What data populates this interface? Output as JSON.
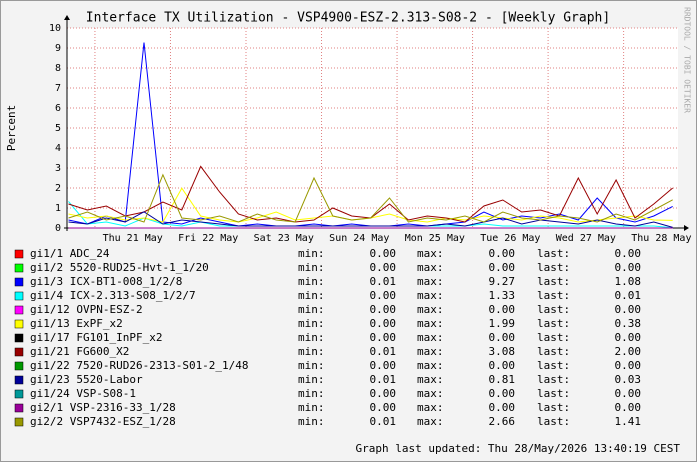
{
  "chart_data": {
    "type": "line",
    "title": "Interface TX Utilization - VSP4900-ESZ-2.313-S08-2 - [Weekly Graph]",
    "y_label": "Percent",
    "watermark": "RRDTOOL / TOBI OETIKER",
    "footer": "Graph last updated: Thu 28/May/2026 13:40:19 CEST",
    "stat_labels": {
      "min": "min:",
      "max": "max:",
      "last": "last:"
    },
    "xlim": [
      -0.37,
      7.72
    ],
    "xticks": [
      {
        "value": 0.5,
        "label": "Thu 21 May"
      },
      {
        "value": 1.5,
        "label": "Fri 22 May"
      },
      {
        "value": 2.5,
        "label": "Sat 23 May"
      },
      {
        "value": 3.5,
        "label": "Sun 24 May"
      },
      {
        "value": 4.5,
        "label": "Mon 25 May"
      },
      {
        "value": 5.5,
        "label": "Tue 26 May"
      },
      {
        "value": 6.5,
        "label": "Wed 27 May"
      },
      {
        "value": 7.5,
        "label": "Thu 28 May"
      }
    ],
    "ylim": [
      0,
      10
    ],
    "yticks": [
      0,
      1,
      2,
      3,
      4,
      5,
      6,
      7,
      8,
      9,
      10
    ],
    "grid": true,
    "x": [
      -0.35,
      -0.1,
      0.15,
      0.4,
      0.65,
      0.9,
      1.15,
      1.4,
      1.65,
      1.9,
      2.15,
      2.4,
      2.65,
      2.9,
      3.15,
      3.4,
      3.65,
      3.9,
      4.15,
      4.4,
      4.65,
      4.9,
      5.15,
      5.4,
      5.65,
      5.9,
      6.15,
      6.4,
      6.65,
      6.9,
      7.15,
      7.4,
      7.65
    ],
    "series": [
      {
        "name": "gi1/1 ADC_24",
        "color": "#ff0000",
        "min": "0.00",
        "max": "0.00",
        "last": "0.00",
        "values": [
          0,
          0,
          0,
          0,
          0,
          0,
          0,
          0,
          0,
          0,
          0,
          0,
          0,
          0,
          0,
          0,
          0,
          0,
          0,
          0,
          0,
          0,
          0,
          0,
          0,
          0,
          0,
          0,
          0,
          0,
          0,
          0,
          0
        ]
      },
      {
        "name": "gi1/2 5520-RUD25-Hvt-1_1/20",
        "color": "#00ff00",
        "min": "0.00",
        "max": "0.00",
        "last": "0.00",
        "values": [
          0,
          0,
          0,
          0,
          0,
          0,
          0,
          0,
          0,
          0,
          0,
          0,
          0,
          0,
          0,
          0,
          0,
          0,
          0,
          0,
          0,
          0,
          0,
          0,
          0,
          0,
          0,
          0,
          0,
          0,
          0,
          0,
          0
        ]
      },
      {
        "name": "gi1/3 ICX-BT1-008_1/2/8",
        "color": "#0000ff",
        "min": "0.01",
        "max": "9.27",
        "last": "1.08",
        "values": [
          0.4,
          0.2,
          0.6,
          0.3,
          9.27,
          0.3,
          0.2,
          0.5,
          0.3,
          0.1,
          0.2,
          0.1,
          0.1,
          0.2,
          0.1,
          0.2,
          0.1,
          0.1,
          0.2,
          0.1,
          0.2,
          0.3,
          0.8,
          0.4,
          0.6,
          0.5,
          0.7,
          0.4,
          1.5,
          0.5,
          0.3,
          0.6,
          1.08
        ]
      },
      {
        "name": "gi1/4 ICX-2.313-S08_1/2/7",
        "color": "#00ffff",
        "min": "0.00",
        "max": "1.33",
        "last": "0.01",
        "values": [
          1.33,
          0.2,
          0.3,
          0.1,
          0.5,
          0.2,
          0.1,
          0.3,
          0.1,
          0.1,
          0.1,
          0.1,
          0.1,
          0.1,
          0.1,
          0.1,
          0.1,
          0.1,
          0.1,
          0.1,
          0.1,
          0.1,
          0.2,
          0.1,
          0.1,
          0.1,
          0.1,
          0.1,
          0.1,
          0.1,
          0.1,
          0.1,
          0.01
        ]
      },
      {
        "name": "gi1/12 OVPN-ESZ-2",
        "color": "#ff00ff",
        "min": "0.00",
        "max": "0.00",
        "last": "0.00",
        "values": [
          0,
          0,
          0,
          0,
          0,
          0,
          0,
          0,
          0,
          0,
          0,
          0,
          0,
          0,
          0,
          0,
          0,
          0,
          0,
          0,
          0,
          0,
          0,
          0,
          0,
          0,
          0,
          0,
          0,
          0,
          0,
          0,
          0
        ]
      },
      {
        "name": "gi1/13 ExPF_x2",
        "color": "#ffff00",
        "min": "0.00",
        "max": "1.99",
        "last": "0.38",
        "values": [
          0.7,
          0.5,
          0.6,
          0.4,
          0.5,
          0.3,
          1.99,
          0.6,
          0.4,
          0.3,
          0.5,
          0.8,
          0.4,
          0.5,
          0.6,
          0.4,
          0.5,
          0.7,
          0.4,
          0.3,
          0.5,
          0.4,
          0.6,
          0.5,
          0.4,
          0.6,
          0.5,
          0.3,
          0.4,
          0.5,
          0.6,
          0.4,
          0.38
        ]
      },
      {
        "name": "gi1/17 FG101_InPF_x2",
        "color": "#000000",
        "min": "0.00",
        "max": "0.00",
        "last": "0.00",
        "values": [
          0,
          0,
          0,
          0,
          0,
          0,
          0,
          0,
          0,
          0,
          0,
          0,
          0,
          0,
          0,
          0,
          0,
          0,
          0,
          0,
          0,
          0,
          0,
          0,
          0,
          0,
          0,
          0,
          0,
          0,
          0,
          0,
          0
        ]
      },
      {
        "name": "gi1/21 FG600_X2",
        "color": "#990000",
        "min": "0.01",
        "max": "3.08",
        "last": "2.00",
        "values": [
          1.2,
          0.9,
          1.1,
          0.6,
          0.8,
          1.3,
          0.9,
          3.08,
          1.8,
          0.7,
          0.4,
          0.5,
          0.3,
          0.4,
          1.0,
          0.6,
          0.5,
          1.2,
          0.4,
          0.6,
          0.5,
          0.3,
          1.1,
          1.4,
          0.8,
          0.9,
          0.6,
          2.5,
          0.7,
          2.4,
          0.5,
          1.2,
          2.0
        ]
      },
      {
        "name": "gi1/22 7520-RUD26-2313-S01-2_1/48",
        "color": "#009900",
        "min": "0.00",
        "max": "0.00",
        "last": "0.00",
        "values": [
          0,
          0,
          0,
          0,
          0,
          0,
          0,
          0,
          0,
          0,
          0,
          0,
          0,
          0,
          0,
          0,
          0,
          0,
          0,
          0,
          0,
          0,
          0,
          0,
          0,
          0,
          0,
          0,
          0,
          0,
          0,
          0,
          0
        ]
      },
      {
        "name": "gi1/23 5520-Labor",
        "color": "#000099",
        "min": "0.01",
        "max": "0.81",
        "last": "0.03",
        "values": [
          0.3,
          0.2,
          0.5,
          0.3,
          0.81,
          0.2,
          0.4,
          0.3,
          0.2,
          0.1,
          0.1,
          0.1,
          0.1,
          0.1,
          0.1,
          0.1,
          0.1,
          0.1,
          0.1,
          0.1,
          0.2,
          0.1,
          0.3,
          0.5,
          0.2,
          0.4,
          0.3,
          0.2,
          0.4,
          0.2,
          0.1,
          0.3,
          0.03
        ]
      },
      {
        "name": "gi1/24 VSP-S08-1",
        "color": "#009999",
        "min": "0.00",
        "max": "0.00",
        "last": "0.00",
        "values": [
          0,
          0,
          0,
          0,
          0,
          0,
          0,
          0,
          0,
          0,
          0,
          0,
          0,
          0,
          0,
          0,
          0,
          0,
          0,
          0,
          0,
          0,
          0,
          0,
          0,
          0,
          0,
          0,
          0,
          0,
          0,
          0,
          0
        ]
      },
      {
        "name": "gi2/1 VSP-2316-33_1/28",
        "color": "#990099",
        "min": "0.00",
        "max": "0.00",
        "last": "0.00",
        "values": [
          0,
          0,
          0,
          0,
          0,
          0,
          0,
          0,
          0,
          0,
          0,
          0,
          0,
          0,
          0,
          0,
          0,
          0,
          0,
          0,
          0,
          0,
          0,
          0,
          0,
          0,
          0,
          0,
          0,
          0,
          0,
          0,
          0
        ]
      },
      {
        "name": "gi2/2 VSP7432-ESZ_1/28",
        "color": "#999900",
        "min": "0.01",
        "max": "2.66",
        "last": "1.41",
        "values": [
          0.5,
          0.8,
          0.4,
          0.6,
          0.3,
          2.66,
          0.5,
          0.4,
          0.6,
          0.3,
          0.7,
          0.4,
          0.3,
          2.5,
          0.6,
          0.4,
          0.5,
          1.5,
          0.3,
          0.5,
          0.4,
          0.6,
          0.3,
          0.8,
          0.5,
          0.4,
          0.6,
          0.5,
          0.3,
          0.7,
          0.4,
          0.9,
          1.41
        ]
      }
    ]
  }
}
